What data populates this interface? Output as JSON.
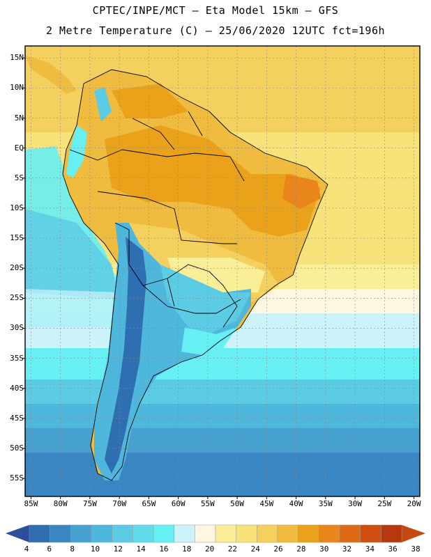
{
  "header": {
    "title_line1": "CPTEC/INPE/MCT –  Eta Model 15km – GFS",
    "title_line2": "2 Metre Temperature (C) – 25/06/2020 12UTC fct=196h"
  },
  "map": {
    "lon_range": [
      -86,
      -19
    ],
    "lat_range": [
      -58,
      17
    ],
    "lat_labels": [
      "15N",
      "10N",
      "5N",
      "EQ",
      "5S",
      "10S",
      "15S",
      "20S",
      "25S",
      "30S",
      "35S",
      "40S",
      "45S",
      "50S",
      "55S"
    ],
    "lon_labels": [
      "85W",
      "80W",
      "75W",
      "70W",
      "65W",
      "60W",
      "55W",
      "50W",
      "45W",
      "40W",
      "35W",
      "30W",
      "25W",
      "20W"
    ]
  },
  "colorbar": {
    "labels": [
      "4",
      "6",
      "8",
      "10",
      "12",
      "14",
      "16",
      "18",
      "20",
      "22",
      "24",
      "26",
      "28",
      "30",
      "32",
      "34",
      "36",
      "38"
    ],
    "colors": [
      "#2f6eb0",
      "#3a86c2",
      "#46a0d0",
      "#4fb6dc",
      "#5ccbe4",
      "#62dcea",
      "#66f0f4",
      "#cdf2fa",
      "#fdf6e0",
      "#fbee98",
      "#f8e27a",
      "#f4d05e",
      "#efbc40",
      "#eaa21a",
      "#e8861c",
      "#e06a14",
      "#cf4e10",
      "#b5380e"
    ],
    "low_color": "#2c4e9c",
    "high_color": "#c44a12"
  }
}
